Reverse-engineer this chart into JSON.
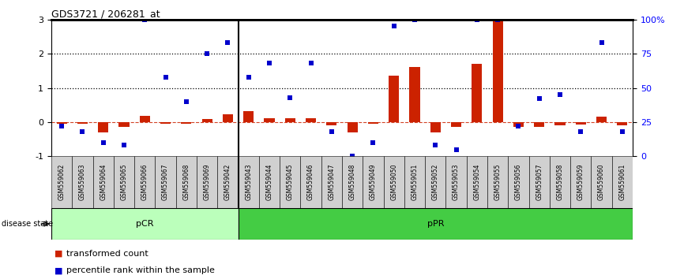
{
  "title": "GDS3721 / 206281_at",
  "samples": [
    "GSM559062",
    "GSM559063",
    "GSM559064",
    "GSM559065",
    "GSM559066",
    "GSM559067",
    "GSM559068",
    "GSM559069",
    "GSM559042",
    "GSM559043",
    "GSM559044",
    "GSM559045",
    "GSM559046",
    "GSM559047",
    "GSM559048",
    "GSM559049",
    "GSM559050",
    "GSM559051",
    "GSM559052",
    "GSM559053",
    "GSM559054",
    "GSM559055",
    "GSM559056",
    "GSM559057",
    "GSM559058",
    "GSM559059",
    "GSM559060",
    "GSM559061"
  ],
  "transformed_count": [
    -0.05,
    -0.05,
    -0.3,
    -0.15,
    0.18,
    -0.04,
    -0.04,
    0.1,
    0.22,
    0.32,
    0.12,
    0.12,
    0.12,
    -0.1,
    -0.3,
    -0.05,
    1.35,
    1.6,
    -0.3,
    -0.15,
    1.7,
    3.0,
    -0.15,
    -0.15,
    -0.1,
    -0.08,
    0.15,
    -0.1
  ],
  "percentile_rank_pct": [
    22,
    18,
    10,
    8,
    100,
    58,
    40,
    75,
    83,
    58,
    68,
    43,
    68,
    18,
    0,
    10,
    95,
    100,
    8,
    5,
    100,
    100,
    22,
    42,
    45,
    18,
    83,
    18
  ],
  "pCR_count": 9,
  "bar_color": "#cc2200",
  "scatter_color": "#0000cc",
  "bg_color_pCR": "#bbffbb",
  "bg_color_pPR": "#44cc44",
  "ylim_left": [
    -1,
    3
  ],
  "ylim_right": [
    0,
    100
  ],
  "yticks_left": [
    -1,
    0,
    1,
    2,
    3
  ],
  "yticks_right": [
    0,
    25,
    50,
    75,
    100
  ],
  "ytick_right_labels": [
    "0",
    "25",
    "50",
    "75",
    "100%"
  ],
  "zero_line_color": "#cc2200",
  "hline_vals": [
    1,
    2
  ]
}
